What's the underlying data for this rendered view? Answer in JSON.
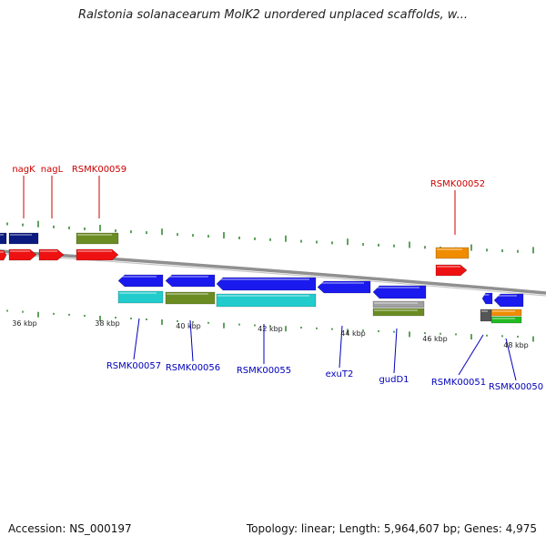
{
  "header": {
    "title": "Ralstonia solanacearum MolK2 unordered unplaced scaffolds, w..."
  },
  "footer": {
    "accession": "Accession: NS_000197",
    "topology": "Topology: linear; Length: 5,964,607 bp; Genes: 4,975"
  },
  "colors": {
    "backbone": "#909090",
    "tick": "#1a7a1a",
    "label_top": "#cc0000",
    "label_bottom": "#0000bb",
    "navy": "#0a1a80",
    "red": "#ee1111",
    "olive": "#6b8c23",
    "blue": "#1a1aee",
    "cyan": "#22cccc",
    "orange": "#f08c00",
    "gray": "#a0a0a0",
    "green": "#22bb22",
    "darkgray": "#555555"
  },
  "scale": {
    "tick_labels": [
      "36 kbp",
      "38 kbp",
      "40 kbp",
      "42 kbp",
      "44 kbp",
      "46 kbp",
      "48 kbp"
    ]
  },
  "labels": {
    "top": [
      "nagK",
      "nagL",
      "RSMK00059",
      "RSMK00052"
    ],
    "bottom": [
      "RSMK00057",
      "RSMK00056",
      "RSMK00055",
      "exuT2",
      "gudD1",
      "RSMK00051",
      "RSMK00050"
    ]
  }
}
